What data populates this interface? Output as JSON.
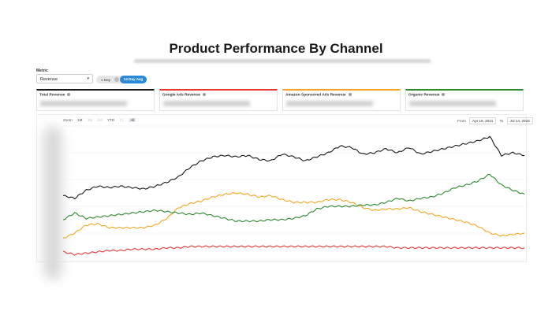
{
  "page": {
    "title": "Product Performance By Channel"
  },
  "controls": {
    "metric_label": "Metric",
    "metric_value": "Revenue",
    "toggle_options": [
      "1 Day",
      "14 Day Avg"
    ],
    "toggle_selected": "14 Day Avg"
  },
  "cards": [
    {
      "label": "Total Revenue",
      "color": "#1a1a1a"
    },
    {
      "label": "Google Ads Revenue",
      "color": "#e53935"
    },
    {
      "label": "Amazon Sponsored Ads Revenue",
      "color": "#f5a623"
    },
    {
      "label": "Organic Revenue",
      "color": "#2e8b2e"
    }
  ],
  "zoom": {
    "label": "Zoom",
    "options": [
      "1M",
      "3M",
      "6M",
      "YTD",
      "1Y",
      "All"
    ],
    "active": "All"
  },
  "range": {
    "from_label": "From",
    "from": "Apr 18, 2021",
    "to_label": "To",
    "to": "Jul 14, 2023"
  },
  "chart_data": {
    "type": "line",
    "x": [
      0,
      1,
      2,
      3,
      4,
      5,
      6,
      7,
      8,
      9,
      10,
      11,
      12,
      13,
      14,
      15,
      16,
      17,
      18,
      19,
      20,
      21,
      22,
      23,
      24,
      25,
      26,
      27,
      28,
      29,
      30,
      31,
      32,
      33,
      34,
      35,
      36,
      37,
      38,
      39,
      40
    ],
    "ylim": [
      0,
      100
    ],
    "y_tick_labels_visible": false,
    "legend": "none",
    "grid": true,
    "series": [
      {
        "name": "Total Revenue",
        "color": "#1a1a1a",
        "values": [
          48,
          46,
          52,
          55,
          54,
          55,
          54,
          53,
          55,
          58,
          62,
          69,
          74,
          77,
          78,
          77,
          78,
          75,
          74,
          79,
          77,
          74,
          77,
          80,
          85,
          84,
          79,
          80,
          83,
          80,
          84,
          79,
          81,
          83,
          85,
          87,
          89,
          92,
          78,
          80,
          78
        ]
      },
      {
        "name": "Google Ads Revenue",
        "color": "#e53935",
        "values": [
          6,
          4,
          5,
          6,
          7,
          7,
          8,
          8,
          8,
          9,
          9,
          10,
          10,
          10,
          10,
          10,
          10,
          10,
          10,
          10,
          10,
          10,
          10,
          10,
          10,
          10,
          10,
          10,
          10,
          9,
          9,
          9,
          9,
          9,
          9,
          9,
          9,
          9,
          9,
          9,
          9
        ]
      },
      {
        "name": "Amazon Sponsored Ads Revenue",
        "color": "#f5a623",
        "values": [
          16,
          20,
          26,
          27,
          24,
          24,
          24,
          24,
          26,
          31,
          39,
          42,
          44,
          47,
          49,
          50,
          49,
          47,
          48,
          45,
          43,
          43,
          43,
          45,
          45,
          43,
          39,
          37,
          38,
          38,
          39,
          36,
          34,
          32,
          30,
          28,
          25,
          20,
          18,
          19,
          20
        ]
      },
      {
        "name": "Organic Revenue",
        "color": "#2e8b2e",
        "values": [
          30,
          35,
          31,
          32,
          33,
          34,
          35,
          36,
          37,
          36,
          35,
          34,
          35,
          33,
          31,
          29,
          29,
          29,
          30,
          30,
          31,
          33,
          38,
          40,
          40,
          40,
          41,
          41,
          43,
          46,
          44,
          46,
          47,
          50,
          54,
          56,
          59,
          64,
          56,
          52,
          49
        ]
      }
    ]
  }
}
